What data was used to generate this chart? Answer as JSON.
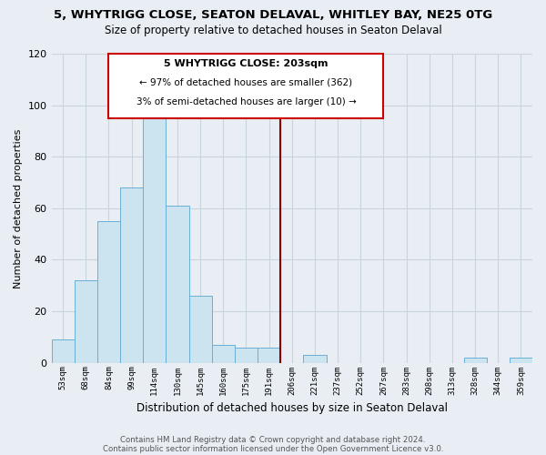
{
  "title": "5, WHYTRIGG CLOSE, SEATON DELAVAL, WHITLEY BAY, NE25 0TG",
  "subtitle": "Size of property relative to detached houses in Seaton Delaval",
  "xlabel": "Distribution of detached houses by size in Seaton Delaval",
  "ylabel": "Number of detached properties",
  "bar_labels": [
    "53sqm",
    "68sqm",
    "84sqm",
    "99sqm",
    "114sqm",
    "130sqm",
    "145sqm",
    "160sqm",
    "175sqm",
    "191sqm",
    "206sqm",
    "221sqm",
    "237sqm",
    "252sqm",
    "267sqm",
    "283sqm",
    "298sqm",
    "313sqm",
    "328sqm",
    "344sqm",
    "359sqm"
  ],
  "bar_values": [
    9,
    32,
    55,
    68,
    97,
    61,
    26,
    7,
    6,
    6,
    0,
    3,
    0,
    0,
    0,
    0,
    0,
    0,
    2,
    0,
    2
  ],
  "bar_color": "#cce4f0",
  "bar_edge_color": "#6aafd6",
  "highlight_color": "#8b0000",
  "annotation_title": "5 WHYTRIGG CLOSE: 203sqm",
  "annotation_line1": "← 97% of detached houses are smaller (362)",
  "annotation_line2": "3% of semi-detached houses are larger (10) →",
  "annotation_box_color": "#ffffff",
  "annotation_border_color": "#cc0000",
  "footer_line1": "Contains HM Land Registry data © Crown copyright and database right 2024.",
  "footer_line2": "Contains public sector information licensed under the Open Government Licence v3.0.",
  "ylim": [
    0,
    120
  ],
  "yticks": [
    0,
    20,
    40,
    60,
    80,
    100,
    120
  ],
  "background_color": "#e8eef4",
  "grid_color": "#d0d8e0"
}
